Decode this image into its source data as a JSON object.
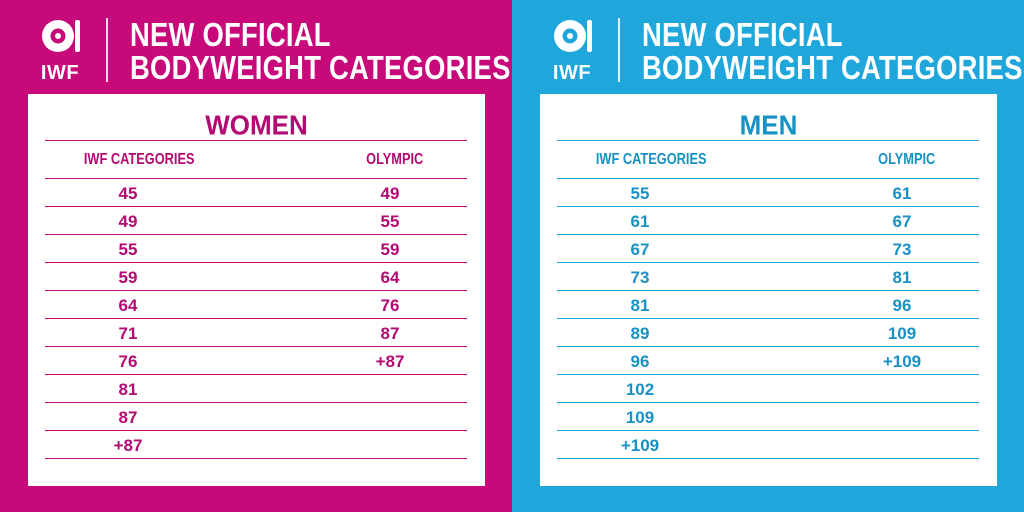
{
  "left": {
    "logo_text": "IWF",
    "title_line1": "NEW OFFICIAL",
    "title_line2": "BODYWEIGHT CATEGORIES",
    "section_title": "WOMEN",
    "col1_header": "IWF CATEGORIES",
    "col2_header": "OLYMPIC",
    "iwf_categories": [
      "45",
      "49",
      "55",
      "59",
      "64",
      "71",
      "76",
      "81",
      "87",
      "+87"
    ],
    "olympic": [
      "49",
      "55",
      "59",
      "64",
      "76",
      "87",
      "+87"
    ]
  },
  "right": {
    "logo_text": "IWF",
    "title_line1": "NEW OFFICIAL",
    "title_line2": "BODYWEIGHT CATEGORIES",
    "section_title": "MEN",
    "col1_header": "IWF CATEGORIES",
    "col2_header": "OLYMPIC",
    "iwf_categories": [
      "55",
      "61",
      "67",
      "73",
      "81",
      "89",
      "96",
      "102",
      "109",
      "+109"
    ],
    "olympic": [
      "61",
      "67",
      "73",
      "81",
      "96",
      "109",
      "+109"
    ]
  },
  "colors": {
    "women": "#c8097a",
    "men": "#1fa7dc"
  },
  "icons": {
    "logo": "barbell-plate-icon"
  }
}
